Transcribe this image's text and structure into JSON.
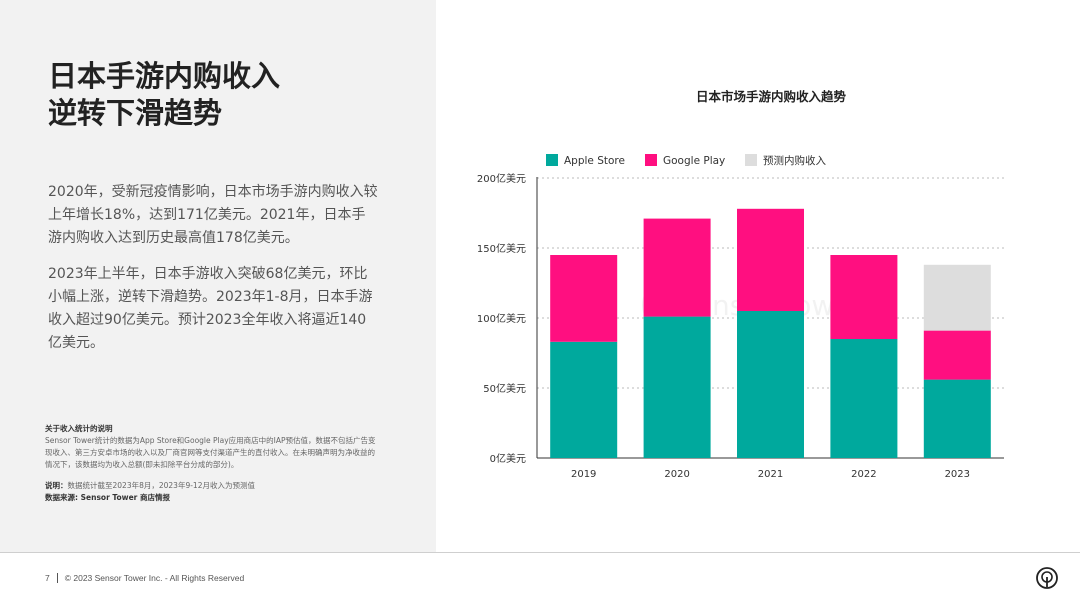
{
  "page": {
    "title_lines": [
      "日本手游内购收入",
      "逆转下滑趋势"
    ],
    "paragraph1": "2020年，受新冠疫情影响，日本市场手游内购收入较上年增长18%，达到171亿美元。2021年，日本手游内购收入达到历史最高值178亿美元。",
    "paragraph2": "2023年上半年，日本手游收入突破68亿美元，环比小幅上涨，逆转下滑趋势。2023年1-8月，日本手游收入超过90亿美元。预计2023全年收入将逼近140亿美元。",
    "notes": {
      "heading": "关于收入统计的说明",
      "body": "Sensor Tower统计的数据为App Store和Google Play应用商店中的IAP预估值，数据不包括广告变现收入、第三方安卓市场的收入以及厂商官网等支付渠道产生的直付收入。在未明确声明为净收益的情况下，该数据均为收入总额(即未扣除平台分成的部分)。",
      "explain_label": "说明：",
      "explain_text": "数据统计截至2023年8月，2023年9-12月收入为预测值",
      "source_label": "数据来源: ",
      "source_text": "Sensor Tower 商店情报"
    },
    "footer": {
      "page_number": "7",
      "copyright": "© 2023 Sensor Tower Inc. - All Rights Reserved"
    }
  },
  "chart_data": {
    "type": "bar",
    "stacked": true,
    "title": "日本市场手游内购收入趋势",
    "categories": [
      "2019",
      "2020",
      "2021",
      "2022",
      "2023"
    ],
    "series": [
      {
        "name": "Apple Store",
        "color": "#00a99d",
        "values": [
          83,
          101,
          105,
          85,
          56
        ]
      },
      {
        "name": "Google Play",
        "color": "#ff0f80",
        "values": [
          62,
          70,
          73,
          60,
          35
        ]
      },
      {
        "name": "预测内购收入",
        "color": "#dddddd",
        "values": [
          0,
          0,
          0,
          0,
          47
        ]
      }
    ],
    "y_ticks": [
      "0亿美元",
      "50亿美元",
      "100亿美元",
      "150亿美元",
      "200亿美元"
    ],
    "ylim": [
      0,
      200
    ],
    "grid": true,
    "legend_position": "top-left",
    "watermark": "Sensor Tower"
  }
}
